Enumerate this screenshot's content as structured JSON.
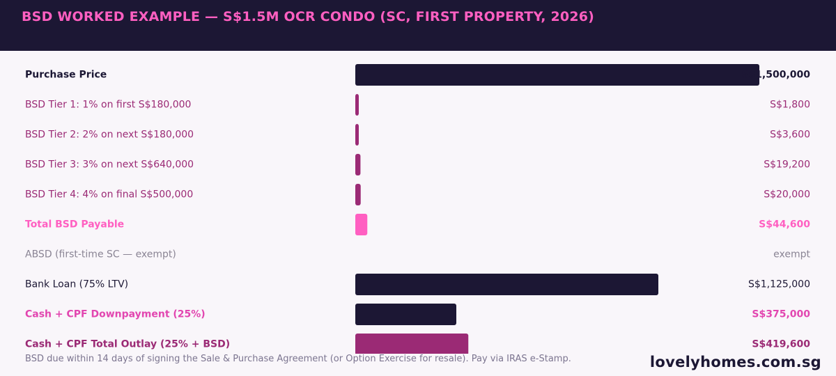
{
  "header": {
    "title": "BSD WORKED EXAMPLE — S$1.5M OCR CONDO (SC, FIRST PROPERTY, 2026)"
  },
  "footer": {
    "note": "BSD due within 14 days of signing the Sale & Purchase Agreement (or Option Exercise for resale). Pay via IRAS e-Stamp.",
    "brand": "lovelyhomes.com.sg"
  },
  "chart_data": {
    "type": "bar",
    "orientation": "horizontal",
    "xlim": [
      0,
      1500000
    ],
    "rows": [
      {
        "label": "Purchase Price",
        "value": 1500000,
        "value_label": "S$1,500,000",
        "label_color": "#1c1734",
        "bar_color": "#1c1734",
        "value_color": "#1c1734",
        "bold": true
      },
      {
        "label": "BSD Tier 1: 1% on first S$180,000",
        "value": 1800,
        "value_label": "S$1,800",
        "label_color": "#9b2a75",
        "bar_color": "#9b2a75",
        "value_color": "#9b2a75",
        "bold": false
      },
      {
        "label": "BSD Tier 2: 2% on next S$180,000",
        "value": 3600,
        "value_label": "S$3,600",
        "label_color": "#9b2a75",
        "bar_color": "#9b2a75",
        "value_color": "#9b2a75",
        "bold": false
      },
      {
        "label": "BSD Tier 3: 3% on next S$640,000",
        "value": 19200,
        "value_label": "S$19,200",
        "label_color": "#9b2a75",
        "bar_color": "#9b2a75",
        "value_color": "#9b2a75",
        "bold": false
      },
      {
        "label": "BSD Tier 4: 4% on final S$500,000",
        "value": 20000,
        "value_label": "S$20,000",
        "label_color": "#9b2a75",
        "bar_color": "#9b2a75",
        "value_color": "#9b2a75",
        "bold": false
      },
      {
        "label": "Total BSD Payable",
        "value": 44600,
        "value_label": "S$44,600",
        "label_color": "#ff5fc1",
        "bar_color": "#ff5fc1",
        "value_color": "#ff5fc1",
        "bold": true
      },
      {
        "label": "ABSD (first-time SC — exempt)",
        "value": 0,
        "value_label": "exempt",
        "label_color": "#8a8494",
        "bar_color": "#8a8494",
        "value_color": "#8a8494",
        "bold": false
      },
      {
        "label": "Bank Loan (75% LTV)",
        "value": 1125000,
        "value_label": "S$1,125,000",
        "label_color": "#1c1734",
        "bar_color": "#1c1734",
        "value_color": "#1c1734",
        "bold": false
      },
      {
        "label": "Cash + CPF Downpayment (25%)",
        "value": 375000,
        "value_label": "S$375,000",
        "label_color": "#e246b0",
        "bar_color": "#1c1734",
        "value_color": "#e246b0",
        "bold": true
      },
      {
        "label": "Cash + CPF Total Outlay (25% + BSD)",
        "value": 419600,
        "value_label": "S$419,600",
        "label_color": "#9b2a75",
        "bar_color": "#9b2a75",
        "value_color": "#9b2a75",
        "bold": true
      }
    ]
  }
}
